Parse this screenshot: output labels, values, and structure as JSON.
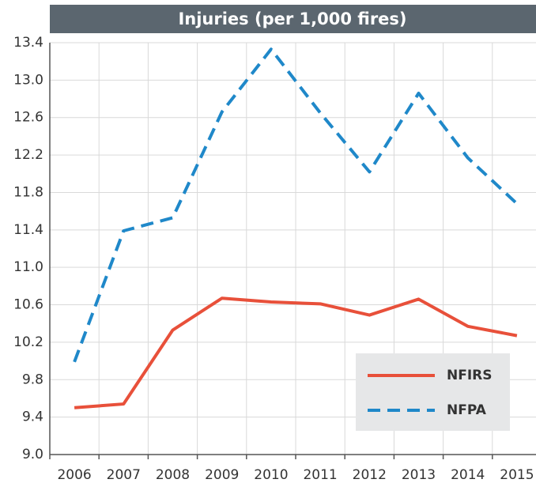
{
  "chart_data": {
    "type": "line",
    "title": "Injuries (per 1,000 fires)",
    "categories": [
      "2006",
      "2007",
      "2008",
      "2009",
      "2010",
      "2011",
      "2012",
      "2013",
      "2014",
      "2015"
    ],
    "series": [
      {
        "name": "NFIRS",
        "color": "#e8503a",
        "dashed": false,
        "values": [
          9.5,
          9.54,
          10.33,
          10.67,
          10.63,
          10.61,
          10.49,
          10.66,
          10.37,
          10.27
        ]
      },
      {
        "name": "NFPA",
        "color": "#1f88c9",
        "dashed": true,
        "values": [
          9.99,
          11.39,
          11.53,
          12.66,
          13.33,
          12.65,
          12.02,
          12.86,
          12.17,
          11.68
        ]
      }
    ],
    "ylim": [
      9.0,
      13.4
    ],
    "yticks": [
      {
        "value": 9.0,
        "label": "9.0"
      },
      9.4,
      9.8,
      10.2,
      10.6,
      {
        "value": 11.0,
        "label": "11.0"
      },
      11.4,
      11.8,
      12.2,
      12.6,
      {
        "value": 13.0,
        "label": "13.0"
      },
      13.4
    ],
    "grid": true,
    "legend": "lower right"
  }
}
